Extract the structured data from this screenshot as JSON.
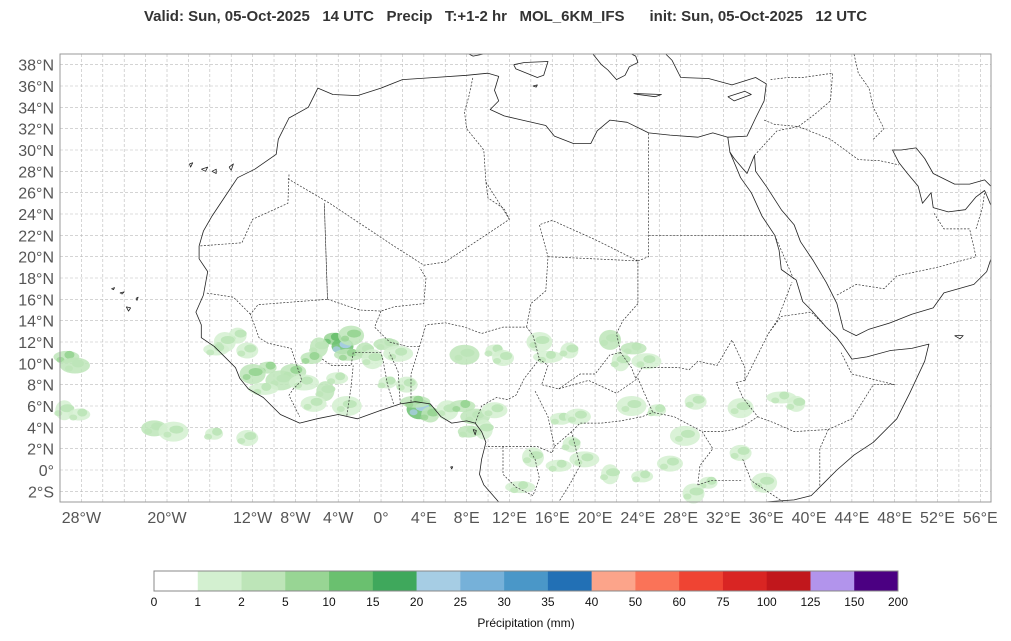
{
  "title": "Valid: Sun, 05-Oct-2025   14 UTC   Precip   T:+1-2 hr   MOL_6KM_IFS      init: Sun, 05-Oct-2025   12 UTC",
  "map": {
    "lon_range": [
      -30,
      57
    ],
    "lat_range": [
      -3,
      39
    ],
    "lat_ticks": [
      {
        "value": 38,
        "label": "38°N"
      },
      {
        "value": 36,
        "label": "36°N"
      },
      {
        "value": 34,
        "label": "34°N"
      },
      {
        "value": 32,
        "label": "32°N"
      },
      {
        "value": 30,
        "label": "30°N"
      },
      {
        "value": 28,
        "label": "28°N"
      },
      {
        "value": 26,
        "label": "26°N"
      },
      {
        "value": 24,
        "label": "24°N"
      },
      {
        "value": 22,
        "label": "22°N"
      },
      {
        "value": 20,
        "label": "20°N"
      },
      {
        "value": 18,
        "label": "18°N"
      },
      {
        "value": 16,
        "label": "16°N"
      },
      {
        "value": 14,
        "label": "14°N"
      },
      {
        "value": 12,
        "label": "12°N"
      },
      {
        "value": 10,
        "label": "10°N"
      },
      {
        "value": 8,
        "label": "8°N"
      },
      {
        "value": 6,
        "label": "6°N"
      },
      {
        "value": 4,
        "label": "4°N"
      },
      {
        "value": 2,
        "label": "2°N"
      },
      {
        "value": 0,
        "label": "0°"
      },
      {
        "value": -2,
        "label": "2°S"
      }
    ],
    "lon_ticks": [
      {
        "value": -28,
        "label": "28°W"
      },
      {
        "value": -20,
        "label": "20°W"
      },
      {
        "value": -12,
        "label": "12°W"
      },
      {
        "value": -8,
        "label": "8°W"
      },
      {
        "value": -4,
        "label": "4°W"
      },
      {
        "value": 0,
        "label": "0°"
      },
      {
        "value": 4,
        "label": "4°E"
      },
      {
        "value": 8,
        "label": "8°E"
      },
      {
        "value": 12,
        "label": "12°E"
      },
      {
        "value": 16,
        "label": "16°E"
      },
      {
        "value": 20,
        "label": "20°E"
      },
      {
        "value": 24,
        "label": "24°E"
      },
      {
        "value": 28,
        "label": "28°E"
      },
      {
        "value": 32,
        "label": "32°E"
      },
      {
        "value": 36,
        "label": "36°E"
      },
      {
        "value": 40,
        "label": "40°E"
      },
      {
        "value": 44,
        "label": "44°E"
      },
      {
        "value": 48,
        "label": "48°E"
      },
      {
        "value": 52,
        "label": "52°E"
      },
      {
        "value": 56,
        "label": "56°E"
      }
    ],
    "grid_lon_step": 2,
    "grid_lat_step": 2,
    "grid": true,
    "colors": {
      "coast": "#222222",
      "border": "#333333",
      "grid": "#bbbbbb",
      "frame": "#999999"
    }
  },
  "colorbar": {
    "label": "Précipitation (mm)",
    "bounds": [
      "0",
      "1",
      "2",
      "5",
      "10",
      "15",
      "20",
      "25",
      "30",
      "35",
      "40",
      "50",
      "60",
      "75",
      "100",
      "125",
      "150",
      "200"
    ],
    "colors": [
      "#ffffff",
      "#d3f0d0",
      "#bde5b8",
      "#98d594",
      "#6ac06f",
      "#3fa85c",
      "#a6cde4",
      "#76b1d9",
      "#4a97c8",
      "#2270b5",
      "#fca48a",
      "#fa7358",
      "#ef4433",
      "#d92523",
      "#c1171c",
      "#b294ec",
      "#4b0082"
    ]
  },
  "precip_cells": [
    {
      "lon": -4.5,
      "lat": 12.3,
      "amount": 12
    },
    {
      "lon": -3.6,
      "lat": 11.6,
      "amount": 20
    },
    {
      "lon": -2.8,
      "lat": 12.6,
      "amount": 8
    },
    {
      "lon": -3.0,
      "lat": 10.8,
      "amount": 6
    },
    {
      "lon": -1.5,
      "lat": 11.2,
      "amount": 4
    },
    {
      "lon": -0.8,
      "lat": 10.4,
      "amount": 3
    },
    {
      "lon": 0.5,
      "lat": 11.8,
      "amount": 4
    },
    {
      "lon": 1.6,
      "lat": 10.9,
      "amount": 3
    },
    {
      "lon": -5.8,
      "lat": 11.5,
      "amount": 4
    },
    {
      "lon": -6.5,
      "lat": 10.5,
      "amount": 5
    },
    {
      "lon": -8.2,
      "lat": 9.2,
      "amount": 7
    },
    {
      "lon": -9.4,
      "lat": 8.4,
      "amount": 4
    },
    {
      "lon": -10.6,
      "lat": 9.6,
      "amount": 5
    },
    {
      "lon": -12.5,
      "lat": 11.2,
      "amount": 3
    },
    {
      "lon": -12.0,
      "lat": 9.0,
      "amount": 6
    },
    {
      "lon": -11.0,
      "lat": 7.6,
      "amount": 3
    },
    {
      "lon": -13.4,
      "lat": 12.6,
      "amount": 2
    },
    {
      "lon": -14.6,
      "lat": 12.0,
      "amount": 2
    },
    {
      "lon": -15.4,
      "lat": 11.3,
      "amount": 2
    },
    {
      "lon": -7.2,
      "lat": 8.2,
      "amount": 3
    },
    {
      "lon": -5.2,
      "lat": 7.4,
      "amount": 4
    },
    {
      "lon": -4.1,
      "lat": 8.6,
      "amount": 3
    },
    {
      "lon": -6.3,
      "lat": 6.2,
      "amount": 2
    },
    {
      "lon": -3.2,
      "lat": 6.0,
      "amount": 3
    },
    {
      "lon": 0.6,
      "lat": 8.2,
      "amount": 3
    },
    {
      "lon": 2.4,
      "lat": 8.0,
      "amount": 3
    },
    {
      "lon": 3.6,
      "lat": 5.7,
      "amount": 22
    },
    {
      "lon": 3.2,
      "lat": 6.4,
      "amount": 6
    },
    {
      "lon": 4.6,
      "lat": 5.2,
      "amount": 5
    },
    {
      "lon": 6.2,
      "lat": 5.6,
      "amount": 3
    },
    {
      "lon": 7.6,
      "lat": 6.0,
      "amount": 6
    },
    {
      "lon": 8.8,
      "lat": 5.0,
      "amount": 4
    },
    {
      "lon": 9.6,
      "lat": 3.8,
      "amount": 3
    },
    {
      "lon": 8.2,
      "lat": 3.6,
      "amount": 4
    },
    {
      "lon": 10.6,
      "lat": 5.6,
      "amount": 3
    },
    {
      "lon": 7.8,
      "lat": 10.8,
      "amount": 4
    },
    {
      "lon": 10.6,
      "lat": 11.2,
      "amount": 3
    },
    {
      "lon": 11.4,
      "lat": 10.5,
      "amount": 3
    },
    {
      "lon": 14.8,
      "lat": 12.0,
      "amount": 3
    },
    {
      "lon": 15.6,
      "lat": 10.6,
      "amount": 2
    },
    {
      "lon": 17.6,
      "lat": 11.2,
      "amount": 2
    },
    {
      "lon": 21.4,
      "lat": 12.2,
      "amount": 4
    },
    {
      "lon": 23.6,
      "lat": 11.4,
      "amount": 4
    },
    {
      "lon": 24.8,
      "lat": 10.2,
      "amount": 3
    },
    {
      "lon": 22.4,
      "lat": 10.2,
      "amount": 2
    },
    {
      "lon": 16.8,
      "lat": 4.8,
      "amount": 3
    },
    {
      "lon": 18.4,
      "lat": 5.0,
      "amount": 2
    },
    {
      "lon": 23.4,
      "lat": 6.0,
      "amount": 2
    },
    {
      "lon": 25.8,
      "lat": 5.6,
      "amount": 3
    },
    {
      "lon": 29.4,
      "lat": 6.4,
      "amount": 2
    },
    {
      "lon": 33.6,
      "lat": 5.8,
      "amount": 3
    },
    {
      "lon": 37.4,
      "lat": 6.8,
      "amount": 2
    },
    {
      "lon": 38.8,
      "lat": 6.2,
      "amount": 2
    },
    {
      "lon": 14.2,
      "lat": 1.2,
      "amount": 2
    },
    {
      "lon": 16.6,
      "lat": 0.4,
      "amount": 2
    },
    {
      "lon": 19.0,
      "lat": 1.0,
      "amount": 2
    },
    {
      "lon": 21.4,
      "lat": -0.4,
      "amount": 2
    },
    {
      "lon": 24.4,
      "lat": -0.6,
      "amount": 2
    },
    {
      "lon": 27.0,
      "lat": 0.6,
      "amount": 2
    },
    {
      "lon": 28.4,
      "lat": 3.2,
      "amount": 2
    },
    {
      "lon": 30.6,
      "lat": -1.2,
      "amount": 2
    },
    {
      "lon": 33.6,
      "lat": 1.6,
      "amount": 2
    },
    {
      "lon": 35.8,
      "lat": -1.2,
      "amount": 2
    },
    {
      "lon": 13.0,
      "lat": -1.6,
      "amount": 2
    },
    {
      "lon": 17.8,
      "lat": 2.4,
      "amount": 2
    },
    {
      "lon": 29.2,
      "lat": -2.2,
      "amount": 2
    },
    {
      "lon": -29.4,
      "lat": 10.6,
      "amount": 5
    },
    {
      "lon": -28.6,
      "lat": 9.8,
      "amount": 4
    },
    {
      "lon": -29.6,
      "lat": 5.6,
      "amount": 3
    },
    {
      "lon": -28.2,
      "lat": 5.2,
      "amount": 2
    },
    {
      "lon": -21.2,
      "lat": 3.9,
      "amount": 4
    },
    {
      "lon": -19.4,
      "lat": 3.6,
      "amount": 3
    },
    {
      "lon": -15.6,
      "lat": 3.4,
      "amount": 2
    },
    {
      "lon": -12.5,
      "lat": 3.0,
      "amount": 2
    }
  ]
}
